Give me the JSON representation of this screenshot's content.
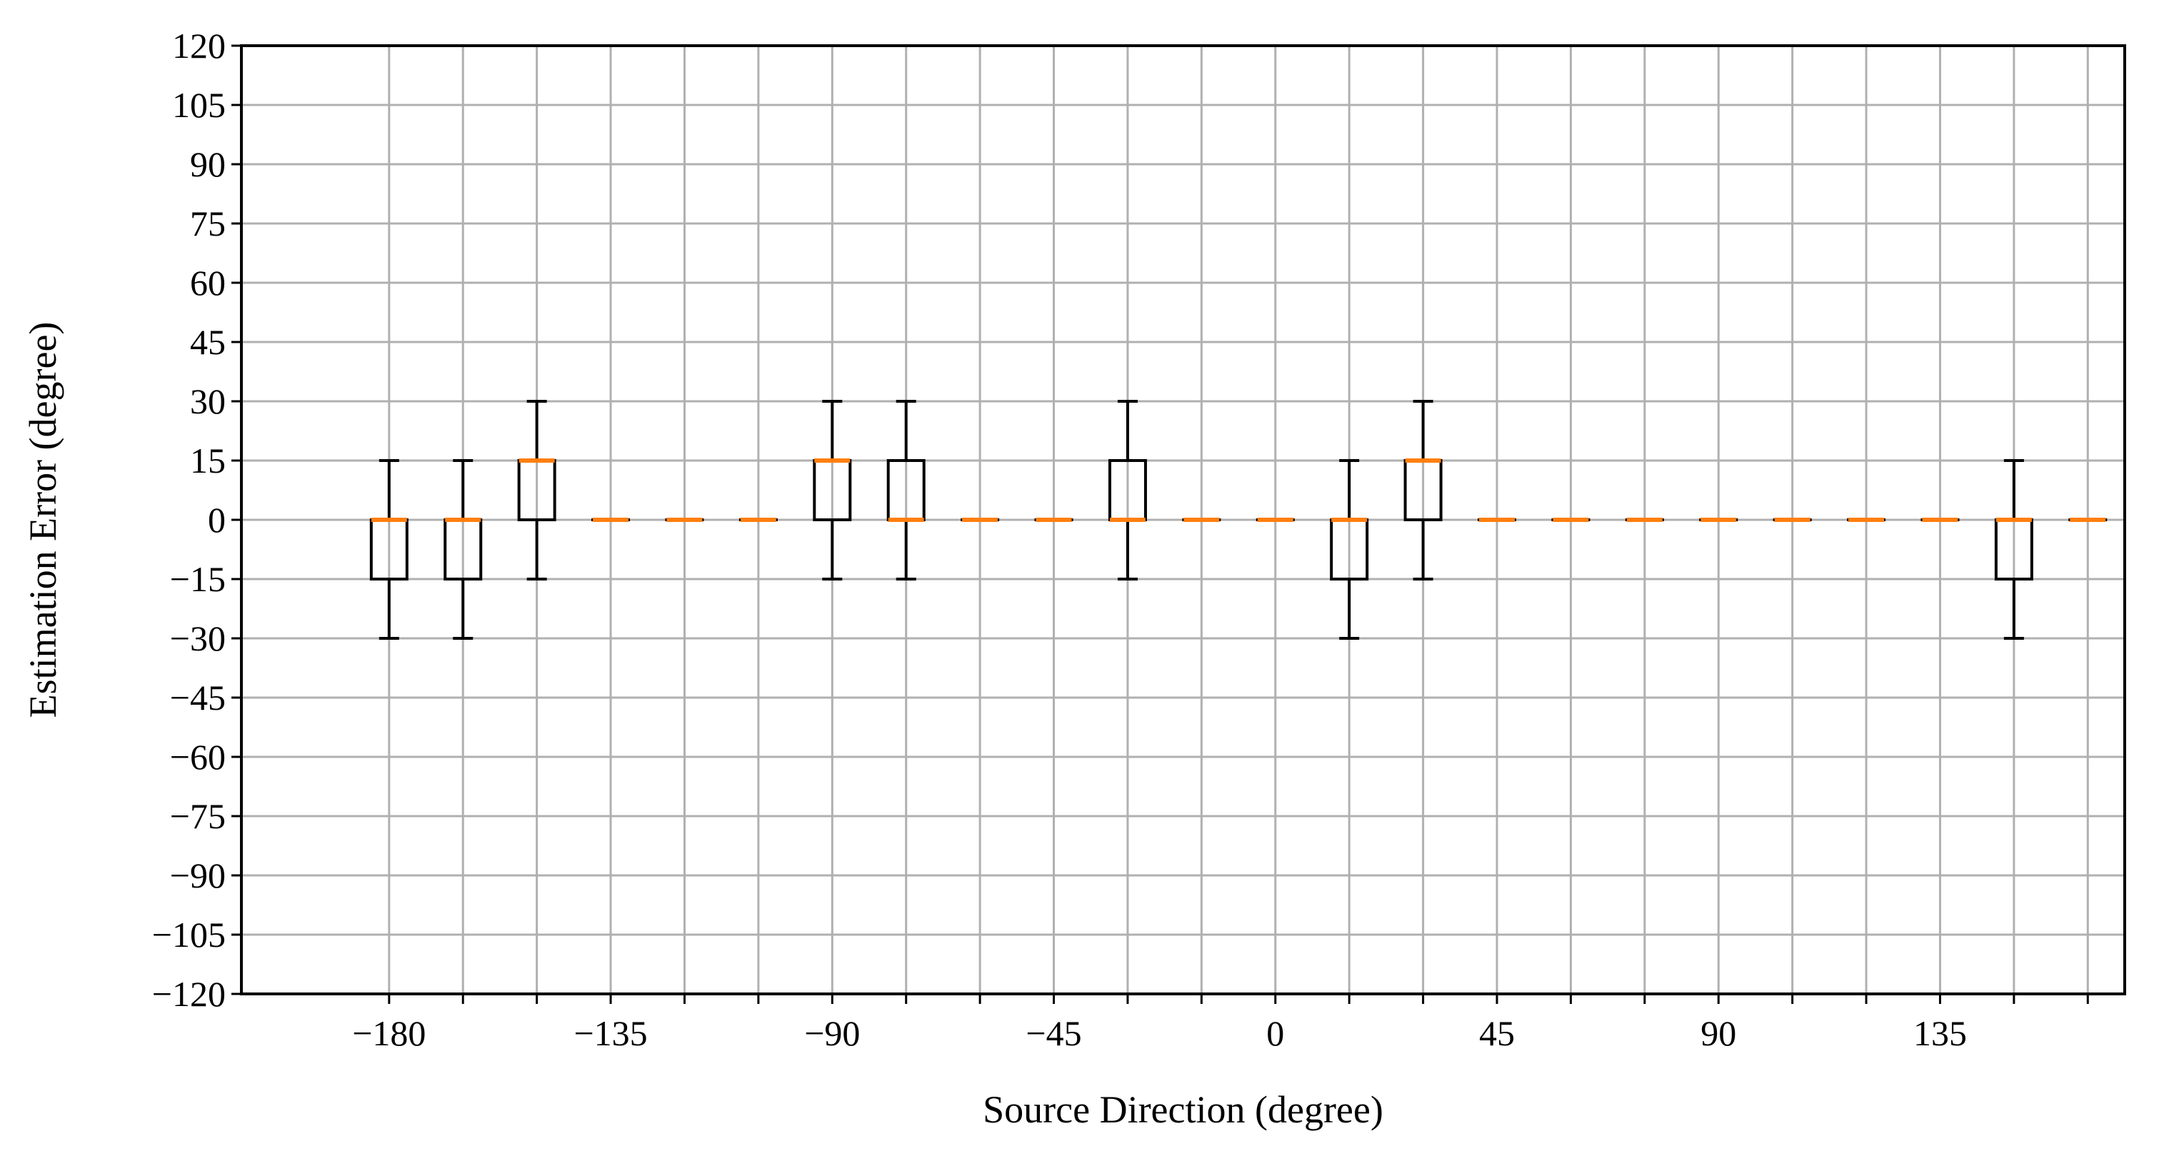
{
  "chart_data": {
    "type": "box",
    "xlabel": "Source Direction (degree)",
    "ylabel": "Estimation Error (degree)",
    "xlim": [
      -210,
      172.5
    ],
    "ylim": [
      -120,
      120
    ],
    "x_ticks": [
      -180,
      -135,
      -90,
      -45,
      0,
      45,
      90,
      135
    ],
    "x_tick_labels": [
      "−180",
      "−135",
      "−90",
      "−45",
      "0",
      "45",
      "90",
      "135"
    ],
    "x_minor_ticks": [
      -165,
      -150,
      -120,
      -105,
      -75,
      -60,
      -30,
      -15,
      15,
      30,
      60,
      75,
      105,
      120,
      150,
      165
    ],
    "y_ticks": [
      -120,
      -105,
      -90,
      -75,
      -60,
      -45,
      -30,
      -15,
      0,
      15,
      30,
      45,
      60,
      75,
      90,
      105,
      120
    ],
    "y_tick_labels": [
      "−120",
      "−105",
      "−90",
      "−75",
      "−60",
      "−45",
      "−30",
      "−15",
      "0",
      "15",
      "30",
      "45",
      "60",
      "75",
      "90",
      "105",
      "120"
    ],
    "grid": true,
    "colors": {
      "median": "#ff7f0e",
      "box": "#000000",
      "grid": "#b0b0b0"
    },
    "boxes": [
      {
        "x": -180,
        "whisker_low": -30,
        "q1": -15,
        "median": 0,
        "q3": 0,
        "whisker_high": 15
      },
      {
        "x": -165,
        "whisker_low": -30,
        "q1": -15,
        "median": 0,
        "q3": 0,
        "whisker_high": 15
      },
      {
        "x": -150,
        "whisker_low": -15,
        "q1": 0,
        "median": 15,
        "q3": 15,
        "whisker_high": 30
      },
      {
        "x": -135,
        "whisker_low": 0,
        "q1": 0,
        "median": 0,
        "q3": 0,
        "whisker_high": 0
      },
      {
        "x": -120,
        "whisker_low": 0,
        "q1": 0,
        "median": 0,
        "q3": 0,
        "whisker_high": 0
      },
      {
        "x": -105,
        "whisker_low": 0,
        "q1": 0,
        "median": 0,
        "q3": 0,
        "whisker_high": 0
      },
      {
        "x": -90,
        "whisker_low": -15,
        "q1": 0,
        "median": 15,
        "q3": 15,
        "whisker_high": 30
      },
      {
        "x": -75,
        "whisker_low": -15,
        "q1": 0,
        "median": 0,
        "q3": 15,
        "whisker_high": 30
      },
      {
        "x": -60,
        "whisker_low": 0,
        "q1": 0,
        "median": 0,
        "q3": 0,
        "whisker_high": 0
      },
      {
        "x": -45,
        "whisker_low": 0,
        "q1": 0,
        "median": 0,
        "q3": 0,
        "whisker_high": 0
      },
      {
        "x": -30,
        "whisker_low": -15,
        "q1": 0,
        "median": 0,
        "q3": 15,
        "whisker_high": 30
      },
      {
        "x": -15,
        "whisker_low": 0,
        "q1": 0,
        "median": 0,
        "q3": 0,
        "whisker_high": 0
      },
      {
        "x": 0,
        "whisker_low": 0,
        "q1": 0,
        "median": 0,
        "q3": 0,
        "whisker_high": 0
      },
      {
        "x": 15,
        "whisker_low": -30,
        "q1": -15,
        "median": 0,
        "q3": 0,
        "whisker_high": 15
      },
      {
        "x": 30,
        "whisker_low": -15,
        "q1": 0,
        "median": 15,
        "q3": 15,
        "whisker_high": 30
      },
      {
        "x": 45,
        "whisker_low": 0,
        "q1": 0,
        "median": 0,
        "q3": 0,
        "whisker_high": 0
      },
      {
        "x": 60,
        "whisker_low": 0,
        "q1": 0,
        "median": 0,
        "q3": 0,
        "whisker_high": 0
      },
      {
        "x": 75,
        "whisker_low": 0,
        "q1": 0,
        "median": 0,
        "q3": 0,
        "whisker_high": 0
      },
      {
        "x": 90,
        "whisker_low": 0,
        "q1": 0,
        "median": 0,
        "q3": 0,
        "whisker_high": 0
      },
      {
        "x": 105,
        "whisker_low": 0,
        "q1": 0,
        "median": 0,
        "q3": 0,
        "whisker_high": 0
      },
      {
        "x": 120,
        "whisker_low": 0,
        "q1": 0,
        "median": 0,
        "q3": 0,
        "whisker_high": 0
      },
      {
        "x": 135,
        "whisker_low": 0,
        "q1": 0,
        "median": 0,
        "q3": 0,
        "whisker_high": 0
      },
      {
        "x": 150,
        "whisker_low": -30,
        "q1": -15,
        "median": 0,
        "q3": 0,
        "whisker_high": 15
      },
      {
        "x": 165,
        "whisker_low": 0,
        "q1": 0,
        "median": 0,
        "q3": 0,
        "whisker_high": 0
      }
    ]
  }
}
